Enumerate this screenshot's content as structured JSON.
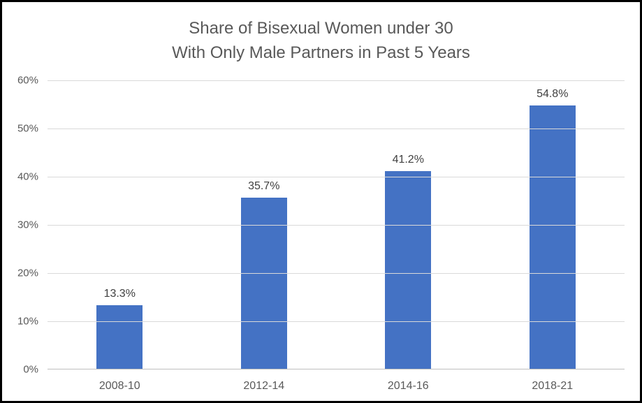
{
  "chart_data": {
    "type": "bar",
    "title_lines": [
      "Share of Bisexual Women under 30",
      "With Only Male Partners in Past 5 Years"
    ],
    "categories": [
      "2008-10",
      "2012-14",
      "2014-16",
      "2018-21"
    ],
    "values": [
      13.3,
      35.7,
      41.2,
      54.8
    ],
    "data_labels": [
      "13.3%",
      "35.7%",
      "41.2%",
      "54.8%"
    ],
    "y_ticks": [
      "0%",
      "10%",
      "20%",
      "30%",
      "40%",
      "50%",
      "60%"
    ],
    "ylim": [
      0,
      60
    ],
    "xlabel": "",
    "ylabel": "",
    "grid": true,
    "legend": "none",
    "colors": {
      "bar_fill": "#4472C4",
      "gridline": "#D9D9D9",
      "axis_line": "#BFBFBF",
      "title_text": "#595959",
      "tick_text": "#595959",
      "data_label_text": "#404040",
      "frame_border": "#000000",
      "background": "#FFFFFF"
    }
  }
}
